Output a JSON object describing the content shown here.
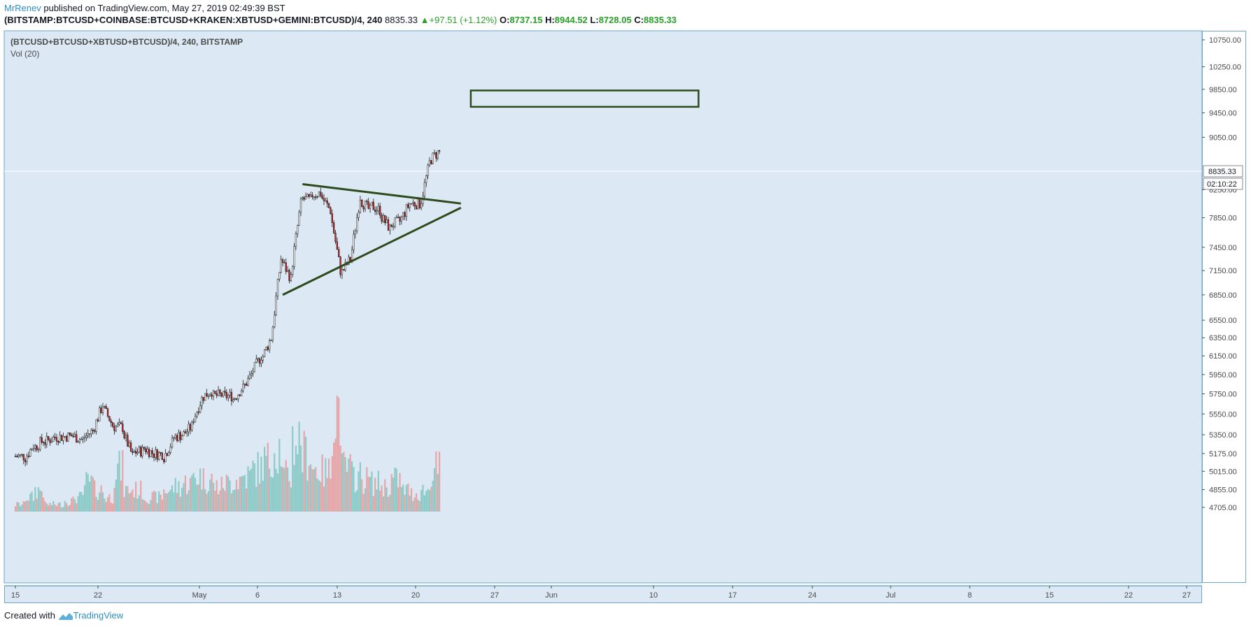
{
  "header": {
    "author": "MrRenev",
    "published": " published on TradingView.com, May 27, 2019 02:49:39 BST",
    "symbol": "(BITSTAMP:BTCUSD+COINBASE:BTCUSD+KRAKEN:XBTUSD+GEMINI:BTCUSD)/4, 240",
    "last": "8835.33",
    "arrow": "▲",
    "change": "+97.51 (+1.12%)",
    "o_label": "O:",
    "o_value": "8737.15",
    "h_label": "H:",
    "h_value": "8944.52",
    "l_label": "L:",
    "l_value": "8728.05",
    "c_label": "C:",
    "c_value": "8835.33"
  },
  "legend": {
    "title": "(BTCUSD+BTCUSD+XBTUSD+BTCUSD)/4, 240, BITSTAMP",
    "volume": "Vol (20)"
  },
  "price_tag": {
    "price": "8835.33",
    "countdown": "02:10:22"
  },
  "footer": {
    "created_with": "Created with",
    "brand": "TradingView"
  },
  "colors": {
    "background": "#dce8f4",
    "up": "#ffffff",
    "down": "#c62828",
    "vol_up": "#7fc6c0",
    "vol_down": "#e89a9a",
    "drawing": "#2d4a1a",
    "accent": "#2e8fbd"
  },
  "chart_data": {
    "type": "candlestick",
    "y_axis": {
      "ticks": [
        "10750.00",
        "10250.00",
        "9850.00",
        "9450.00",
        "9050.00",
        "8250.00",
        "7850.00",
        "7450.00",
        "7150.00",
        "6850.00",
        "6550.00",
        "6350.00",
        "6150.00",
        "5950.00",
        "5750.00",
        "5550.00",
        "5350.00",
        "5175.00",
        "5015.00",
        "4855.00",
        "4705.00"
      ]
    },
    "x_axis": {
      "ticks": [
        "15",
        "22",
        "May",
        "6",
        "13",
        "20",
        "27",
        "Jun",
        "10",
        "17",
        "24",
        "Jul",
        "8",
        "15",
        "22",
        "27"
      ]
    },
    "ylim": [
      4660,
      11100
    ],
    "last_price": 8835.33,
    "candles_close_path": [
      [
        "2019-04-15",
        5150
      ],
      [
        "2019-04-16",
        5250
      ],
      [
        "2019-04-17",
        5300
      ],
      [
        "2019-04-18",
        5320
      ],
      [
        "2019-04-19",
        5330
      ],
      [
        "2019-04-20",
        5340
      ],
      [
        "2019-04-21",
        5300
      ],
      [
        "2019-04-22",
        5390
      ],
      [
        "2019-04-23",
        5640
      ],
      [
        "2019-04-24",
        5440
      ],
      [
        "2019-04-25",
        5420
      ],
      [
        "2019-04-26",
        5150
      ],
      [
        "2019-04-27",
        5200
      ],
      [
        "2019-04-28",
        5180
      ],
      [
        "2019-04-29",
        5170
      ],
      [
        "2019-04-30",
        5280
      ],
      [
        "2019-05-01",
        5350
      ],
      [
        "2019-05-02",
        5430
      ],
      [
        "2019-05-03",
        5700
      ],
      [
        "2019-05-04",
        5780
      ],
      [
        "2019-05-05",
        5740
      ],
      [
        "2019-05-06",
        5730
      ],
      [
        "2019-05-07",
        5800
      ],
      [
        "2019-05-08",
        5950
      ],
      [
        "2019-05-09",
        6150
      ],
      [
        "2019-05-10",
        6350
      ],
      [
        "2019-05-11",
        7300
      ],
      [
        "2019-05-12",
        7050
      ],
      [
        "2019-05-13",
        8050
      ],
      [
        "2019-05-14",
        8100
      ],
      [
        "2019-05-15",
        8200
      ],
      [
        "2019-05-16",
        7950
      ],
      [
        "2019-05-17",
        7150
      ],
      [
        "2019-05-18",
        7300
      ],
      [
        "2019-05-19",
        8150
      ],
      [
        "2019-05-20",
        7950
      ],
      [
        "2019-05-21",
        7950
      ],
      [
        "2019-05-22",
        7700
      ],
      [
        "2019-05-23",
        7800
      ],
      [
        "2019-05-24",
        8050
      ],
      [
        "2019-05-25",
        8050
      ],
      [
        "2019-05-26",
        8650
      ],
      [
        "2019-05-27",
        8835.33
      ]
    ],
    "volume_relative": [
      0.1,
      0.2,
      0.3,
      0.1,
      0.1,
      0.15,
      0.2,
      0.4,
      0.3,
      0.2,
      0.6,
      0.3,
      0.3,
      0.2,
      0.2,
      0.3,
      0.35,
      0.4,
      0.5,
      0.45,
      0.35,
      0.4,
      0.45,
      0.5,
      0.6,
      0.7,
      0.9,
      0.5,
      1.0,
      0.8,
      0.6,
      0.55,
      1.45,
      0.6,
      0.5,
      0.45,
      0.4,
      0.35,
      0.45,
      0.3,
      0.25,
      0.3,
      0.6
    ],
    "drawings": {
      "triangle_upper": [
        [
          "2019-05-14",
          8330
        ],
        [
          "2019-05-30",
          8050
        ]
      ],
      "triangle_lower": [
        [
          "2019-05-12",
          6850
        ],
        [
          "2019-05-30",
          7990
        ]
      ],
      "target_box": {
        "from": "2019-05-31",
        "to": "2019-06-23",
        "low": 9550,
        "high": 9830
      }
    },
    "grid": false
  }
}
